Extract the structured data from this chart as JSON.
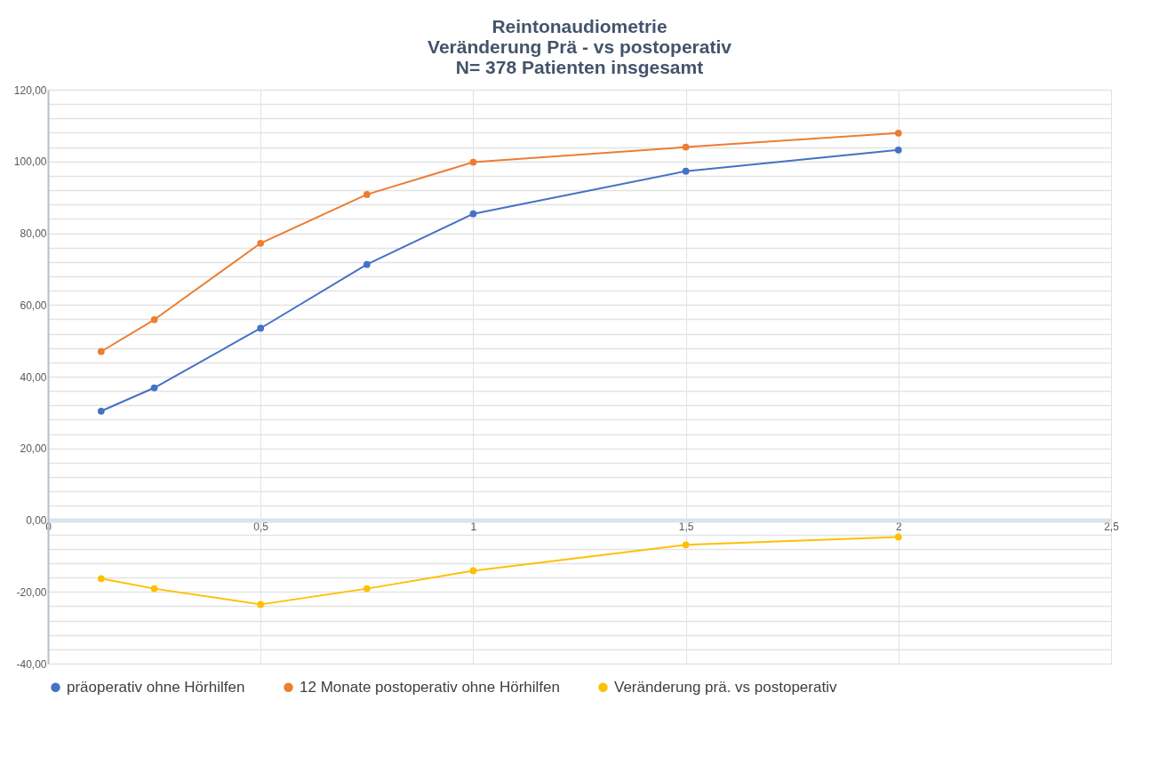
{
  "chart_data": {
    "type": "line",
    "title": [
      "Reintonaudiometrie",
      "Veränderung Prä -  vs postoperativ",
      "N= 378 Patienten insgesamt"
    ],
    "x": [
      0.125,
      0.25,
      0.5,
      0.75,
      1,
      1.5,
      2
    ],
    "series": [
      {
        "name": "präoperativ ohne Hörhilfen",
        "color": "#4472c4",
        "values": [
          30.4,
          36.9,
          53.5,
          71.3,
          85.4,
          97.3,
          103.2
        ]
      },
      {
        "name": "12 Monate postoperativ ohne Hörhilfen",
        "color": "#ed7d31",
        "values": [
          47.0,
          55.9,
          77.2,
          90.8,
          99.8,
          104.0,
          107.9
        ]
      },
      {
        "name": "Veränderung prä. vs postoperativ",
        "color": "#ffc000",
        "values": [
          -16.3,
          -19.1,
          -23.5,
          -19.1,
          -14.1,
          -6.9,
          -4.7
        ]
      }
    ],
    "xlim": [
      0,
      2.5
    ],
    "xticks": [
      0,
      {
        "value": 0.5,
        "label": "0,5"
      },
      1,
      {
        "value": 1.5,
        "label": "1,5"
      },
      2,
      {
        "value": 2.5,
        "label": "2,5"
      }
    ],
    "ylim": [
      -40,
      120
    ],
    "yticks": [
      {
        "value": -40,
        "label": "-40,00"
      },
      {
        "value": -36,
        "label": null
      },
      {
        "value": -32,
        "label": null
      },
      {
        "value": -28,
        "label": null
      },
      {
        "value": -24,
        "label": null
      },
      {
        "value": -20,
        "label": "-20,00"
      },
      {
        "value": -16,
        "label": null
      },
      {
        "value": -12,
        "label": null
      },
      {
        "value": -8,
        "label": null
      },
      {
        "value": -4,
        "label": null
      },
      {
        "value": 0,
        "label": "0,00"
      },
      {
        "value": 4,
        "label": null
      },
      {
        "value": 8,
        "label": null
      },
      {
        "value": 12,
        "label": null
      },
      {
        "value": 16,
        "label": null
      },
      {
        "value": 20,
        "label": "20,00"
      },
      {
        "value": 24,
        "label": null
      },
      {
        "value": 28,
        "label": null
      },
      {
        "value": 32,
        "label": null
      },
      {
        "value": 36,
        "label": null
      },
      {
        "value": 40,
        "label": "40,00"
      },
      {
        "value": 44,
        "label": null
      },
      {
        "value": 48,
        "label": null
      },
      {
        "value": 52,
        "label": null
      },
      {
        "value": 56,
        "label": null
      },
      {
        "value": 60,
        "label": "60,00"
      },
      {
        "value": 64,
        "label": null
      },
      {
        "value": 68,
        "label": null
      },
      {
        "value": 72,
        "label": null
      },
      {
        "value": 76,
        "label": null
      },
      {
        "value": 80,
        "label": "80,00"
      },
      {
        "value": 84,
        "label": null
      },
      {
        "value": 88,
        "label": null
      },
      {
        "value": 92,
        "label": null
      },
      {
        "value": 96,
        "label": null
      },
      {
        "value": 100,
        "label": "100,00"
      },
      {
        "value": 104,
        "label": null
      },
      {
        "value": 108,
        "label": null
      },
      {
        "value": 112,
        "label": null
      },
      {
        "value": 116,
        "label": null
      },
      {
        "value": 120,
        "label": "120,00"
      }
    ],
    "grid": true,
    "legend": "bottom",
    "marker": "circle",
    "line_style": "solid"
  }
}
